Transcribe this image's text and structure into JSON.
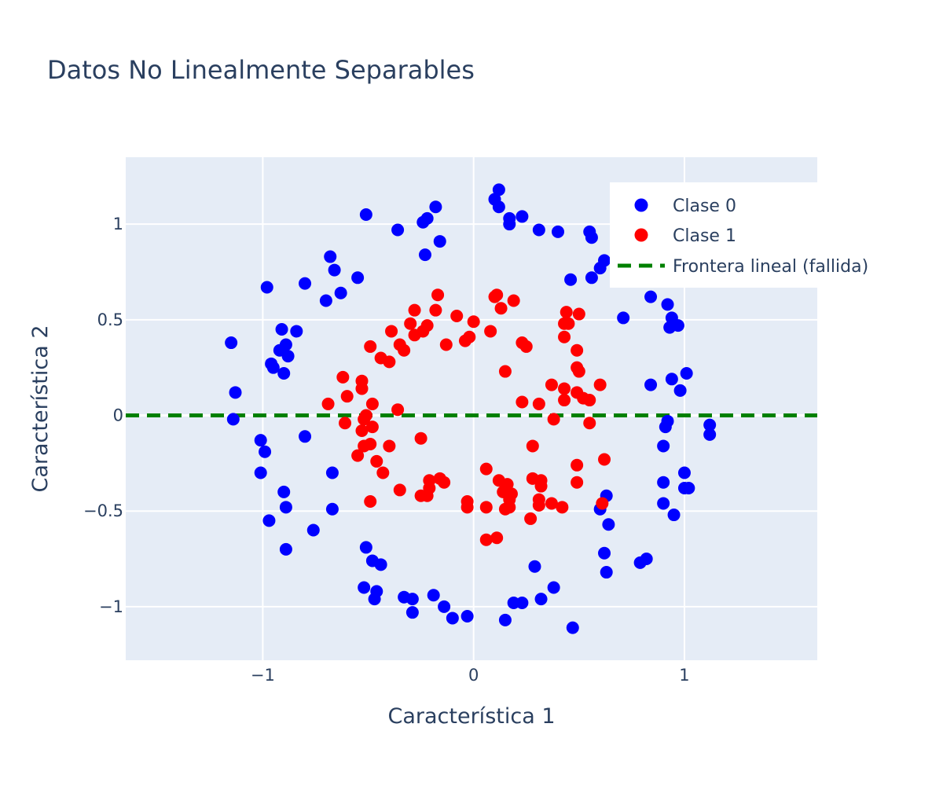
{
  "chart_data": {
    "type": "scatter",
    "title": "Datos No Linealmente Separables",
    "xlabel": "Característica 1",
    "ylabel": "Característica 2",
    "xlim": [
      -1.65,
      1.63
    ],
    "ylim": [
      -1.28,
      1.35
    ],
    "xticks": [
      -1,
      0,
      1
    ],
    "xtick_labels": [
      "−1",
      "0",
      "1"
    ],
    "yticks": [
      -1,
      -0.5,
      0,
      0.5,
      1
    ],
    "ytick_labels": [
      "−1",
      "−0.5",
      "0",
      "0.5",
      "1"
    ],
    "grid": true,
    "legend_position": "top-right",
    "colors": {
      "plot_bg": "#e5ecf6",
      "grid": "#ffffff",
      "class0": "#0000ff",
      "class1": "#ff0000",
      "boundary": "#008000",
      "text": "#2a3f5f"
    },
    "series": [
      {
        "name": "Clase 0",
        "mode": "markers",
        "color": "#0000ff",
        "points": [
          [
            -1.15,
            0.38
          ],
          [
            -1.13,
            0.12
          ],
          [
            -1.14,
            -0.02
          ],
          [
            -0.98,
            0.67
          ],
          [
            -0.91,
            0.45
          ],
          [
            -0.84,
            0.44
          ],
          [
            -0.92,
            0.34
          ],
          [
            -0.89,
            0.37
          ],
          [
            -0.88,
            0.31
          ],
          [
            -0.96,
            0.27
          ],
          [
            -0.95,
            0.25
          ],
          [
            -0.9,
            0.22
          ],
          [
            -1.01,
            -0.13
          ],
          [
            -0.99,
            -0.19
          ],
          [
            -1.01,
            -0.3
          ],
          [
            -0.8,
            -0.11
          ],
          [
            -0.97,
            -0.55
          ],
          [
            -0.9,
            -0.4
          ],
          [
            -0.89,
            -0.48
          ],
          [
            -0.89,
            -0.7
          ],
          [
            -0.76,
            -0.6
          ],
          [
            -0.67,
            -0.3
          ],
          [
            -0.67,
            -0.49
          ],
          [
            -0.8,
            0.69
          ],
          [
            -0.7,
            0.6
          ],
          [
            -0.68,
            0.83
          ],
          [
            -0.66,
            0.76
          ],
          [
            -0.63,
            0.64
          ],
          [
            -0.55,
            0.72
          ],
          [
            -0.51,
            1.05
          ],
          [
            -0.36,
            0.97
          ],
          [
            -0.23,
            0.84
          ],
          [
            -0.24,
            1.01
          ],
          [
            -0.22,
            1.03
          ],
          [
            -0.18,
            1.09
          ],
          [
            -0.16,
            0.91
          ],
          [
            0.1,
            1.13
          ],
          [
            0.12,
            1.18
          ],
          [
            0.12,
            1.09
          ],
          [
            0.17,
            1.0
          ],
          [
            0.17,
            1.03
          ],
          [
            0.23,
            1.04
          ],
          [
            0.31,
            0.97
          ],
          [
            0.4,
            0.96
          ],
          [
            0.55,
            0.96
          ],
          [
            0.56,
            0.93
          ],
          [
            0.46,
            0.71
          ],
          [
            0.56,
            0.72
          ],
          [
            0.6,
            0.77
          ],
          [
            0.62,
            0.81
          ],
          [
            0.71,
            0.51
          ],
          [
            0.84,
            0.62
          ],
          [
            0.92,
            0.58
          ],
          [
            0.94,
            0.51
          ],
          [
            0.93,
            0.46
          ],
          [
            0.97,
            0.47
          ],
          [
            0.98,
            0.13
          ],
          [
            0.94,
            0.19
          ],
          [
            1.01,
            0.22
          ],
          [
            0.84,
            0.16
          ],
          [
            1.12,
            -0.05
          ],
          [
            1.12,
            -0.1
          ],
          [
            0.92,
            -0.03
          ],
          [
            0.91,
            -0.06
          ],
          [
            0.9,
            -0.16
          ],
          [
            0.9,
            -0.35
          ],
          [
            0.9,
            -0.46
          ],
          [
            1.0,
            -0.3
          ],
          [
            1.0,
            -0.38
          ],
          [
            1.02,
            -0.38
          ],
          [
            0.95,
            -0.52
          ],
          [
            0.6,
            -0.49
          ],
          [
            0.63,
            -0.42
          ],
          [
            0.64,
            -0.57
          ],
          [
            0.62,
            -0.72
          ],
          [
            0.63,
            -0.82
          ],
          [
            0.79,
            -0.77
          ],
          [
            0.82,
            -0.75
          ],
          [
            0.47,
            -1.11
          ],
          [
            0.38,
            -0.9
          ],
          [
            0.32,
            -0.96
          ],
          [
            0.29,
            -0.79
          ],
          [
            0.15,
            -1.07
          ],
          [
            0.19,
            -0.98
          ],
          [
            0.23,
            -0.98
          ],
          [
            -0.03,
            -1.05
          ],
          [
            -0.1,
            -1.06
          ],
          [
            -0.14,
            -1.0
          ],
          [
            -0.19,
            -0.94
          ],
          [
            -0.29,
            -1.03
          ],
          [
            -0.29,
            -0.96
          ],
          [
            -0.33,
            -0.95
          ],
          [
            -0.52,
            -0.9
          ],
          [
            -0.51,
            -0.69
          ],
          [
            -0.48,
            -0.76
          ],
          [
            -0.47,
            -0.96
          ],
          [
            -0.46,
            -0.92
          ],
          [
            -0.44,
            -0.78
          ]
        ]
      },
      {
        "name": "Clase 1",
        "mode": "markers",
        "color": "#ff0000",
        "points": [
          [
            -0.69,
            0.06
          ],
          [
            -0.62,
            0.2
          ],
          [
            -0.6,
            0.1
          ],
          [
            -0.61,
            -0.04
          ],
          [
            -0.53,
            0.18
          ],
          [
            -0.53,
            0.14
          ],
          [
            -0.51,
            0.0
          ],
          [
            -0.48,
            0.06
          ],
          [
            -0.52,
            -0.02
          ],
          [
            -0.48,
            -0.06
          ],
          [
            -0.53,
            -0.08
          ],
          [
            -0.52,
            -0.16
          ],
          [
            -0.55,
            -0.21
          ],
          [
            -0.49,
            -0.15
          ],
          [
            -0.46,
            -0.24
          ],
          [
            -0.43,
            -0.3
          ],
          [
            -0.49,
            -0.45
          ],
          [
            -0.35,
            -0.39
          ],
          [
            -0.49,
            0.36
          ],
          [
            -0.44,
            0.3
          ],
          [
            -0.4,
            0.28
          ],
          [
            -0.39,
            0.44
          ],
          [
            -0.35,
            0.37
          ],
          [
            -0.33,
            0.34
          ],
          [
            -0.3,
            0.48
          ],
          [
            -0.28,
            0.55
          ],
          [
            -0.28,
            0.42
          ],
          [
            -0.24,
            0.44
          ],
          [
            -0.22,
            0.47
          ],
          [
            -0.17,
            0.63
          ],
          [
            -0.18,
            0.55
          ],
          [
            -0.13,
            0.37
          ],
          [
            -0.08,
            0.52
          ],
          [
            -0.04,
            0.39
          ],
          [
            -0.02,
            0.41
          ],
          [
            0.0,
            0.49
          ],
          [
            -0.36,
            0.03
          ],
          [
            -0.4,
            -0.16
          ],
          [
            -0.25,
            -0.12
          ],
          [
            -0.25,
            -0.42
          ],
          [
            -0.22,
            -0.42
          ],
          [
            -0.21,
            -0.34
          ],
          [
            -0.21,
            -0.38
          ],
          [
            -0.16,
            -0.33
          ],
          [
            -0.14,
            -0.35
          ],
          [
            -0.03,
            -0.48
          ],
          [
            -0.03,
            -0.45
          ],
          [
            0.06,
            -0.28
          ],
          [
            0.06,
            -0.48
          ],
          [
            0.06,
            -0.65
          ],
          [
            0.11,
            -0.64
          ],
          [
            0.12,
            -0.34
          ],
          [
            0.14,
            -0.4
          ],
          [
            0.16,
            -0.36
          ],
          [
            0.15,
            -0.49
          ],
          [
            0.17,
            -0.48
          ],
          [
            0.17,
            -0.44
          ],
          [
            0.18,
            -0.41
          ],
          [
            0.08,
            0.44
          ],
          [
            0.1,
            0.62
          ],
          [
            0.11,
            0.63
          ],
          [
            0.13,
            0.56
          ],
          [
            0.19,
            0.6
          ],
          [
            0.15,
            0.23
          ],
          [
            0.23,
            0.38
          ],
          [
            0.25,
            0.36
          ],
          [
            0.23,
            0.07
          ],
          [
            0.31,
            0.06
          ],
          [
            0.28,
            -0.16
          ],
          [
            0.28,
            -0.33
          ],
          [
            0.32,
            -0.37
          ],
          [
            0.32,
            -0.34
          ],
          [
            0.31,
            -0.44
          ],
          [
            0.31,
            -0.47
          ],
          [
            0.27,
            -0.54
          ],
          [
            0.37,
            0.16
          ],
          [
            0.38,
            -0.02
          ],
          [
            0.37,
            -0.46
          ],
          [
            0.42,
            -0.48
          ],
          [
            0.43,
            0.08
          ],
          [
            0.43,
            0.14
          ],
          [
            0.43,
            0.41
          ],
          [
            0.43,
            0.48
          ],
          [
            0.45,
            0.48
          ],
          [
            0.44,
            0.54
          ],
          [
            0.5,
            0.53
          ],
          [
            0.49,
            0.34
          ],
          [
            0.49,
            0.25
          ],
          [
            0.5,
            0.23
          ],
          [
            0.49,
            0.12
          ],
          [
            0.52,
            0.09
          ],
          [
            0.55,
            0.08
          ],
          [
            0.55,
            -0.04
          ],
          [
            0.6,
            0.16
          ],
          [
            0.49,
            -0.26
          ],
          [
            0.62,
            -0.23
          ],
          [
            0.49,
            -0.35
          ],
          [
            0.61,
            -0.46
          ]
        ]
      },
      {
        "name": "Frontera lineal (fallida)",
        "mode": "lines",
        "dash": "dash",
        "color": "#008000",
        "x": [
          -1.65,
          1.63
        ],
        "y": [
          0,
          0
        ]
      }
    ]
  }
}
